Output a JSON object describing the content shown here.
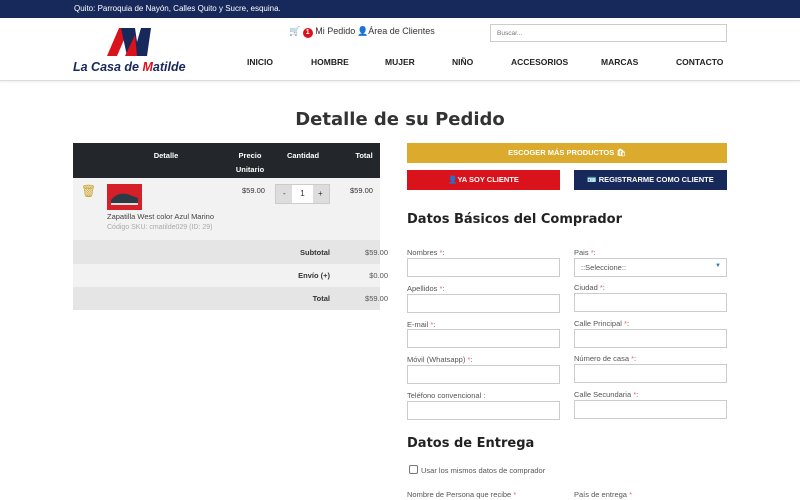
{
  "topbar": {
    "address": "Quito: Parroquia de Nayón, Calles Quito y Sucre, esquina."
  },
  "header": {
    "logo_text_a": "La Casa de ",
    "logo_text_b": "M",
    "logo_text_c": "atilde",
    "cart_count": "1",
    "cart_label": "Mi Pedido",
    "clients_label": "Área de Clientes",
    "search_placeholder": "Buscar...",
    "nav": [
      "INICIO",
      "HOMBRE",
      "MUJER",
      "NIÑO",
      "ACCESORIOS",
      "MARCAS",
      "CONTACTO"
    ]
  },
  "page": {
    "title": "Detalle de su Pedido"
  },
  "cart": {
    "headers": [
      "Detalle",
      "Precio Unitario",
      "Cantidad",
      "Total"
    ],
    "item": {
      "name": "Zapatilla West color Azul Marino",
      "sku": "Código SKU: cmatilde029 (ID: 29)",
      "price": "$59.00",
      "qty": "1",
      "minus": "-",
      "plus": "+",
      "total": "$59.00"
    },
    "summary": [
      {
        "label": "Subtotal",
        "value": "$59.00"
      },
      {
        "label": "Envío (+)",
        "value": "$0.00"
      },
      {
        "label": "Total",
        "value": "$59.00"
      }
    ]
  },
  "actions": {
    "more": "ESCOGER MÁS PRODUCTOS",
    "login": "YA SOY CLIENTE",
    "register": "REGISTRARME COMO CLIENTE"
  },
  "buyer": {
    "title": "Datos Básicos del Comprador",
    "left": [
      {
        "label": "Nombres",
        "req": "*",
        ":": ":"
      },
      {
        "label": "Apellidos",
        "req": "*"
      },
      {
        "label": "E-mail",
        "req": "*"
      },
      {
        "label": "Móvil (Whatsapp)",
        "req": "*"
      },
      {
        "label": "Teléfono convencional :",
        "req": ""
      }
    ],
    "right": [
      {
        "label": "Pais",
        "req": "*"
      },
      {
        "label": "Ciudad",
        "req": "*"
      },
      {
        "label": "Calle Principal",
        "req": "*"
      },
      {
        "label": "Número de casa",
        "req": "*"
      },
      {
        "label": "Calle Secundaria",
        "req": "*"
      }
    ],
    "country_select": "::Seleccione::"
  },
  "delivery": {
    "title": "Datos de Entrega",
    "same_data": "Usar los mismos datos de comprador",
    "receiver": "Nombre de Persona que recibe",
    "receiver_req": "*",
    "country": "País de entrega",
    "country_req": "*"
  },
  "colors": {
    "navy": "#17285a",
    "red": "#d9121c",
    "gold": "#dcab2e",
    "dark": "#23272b"
  }
}
